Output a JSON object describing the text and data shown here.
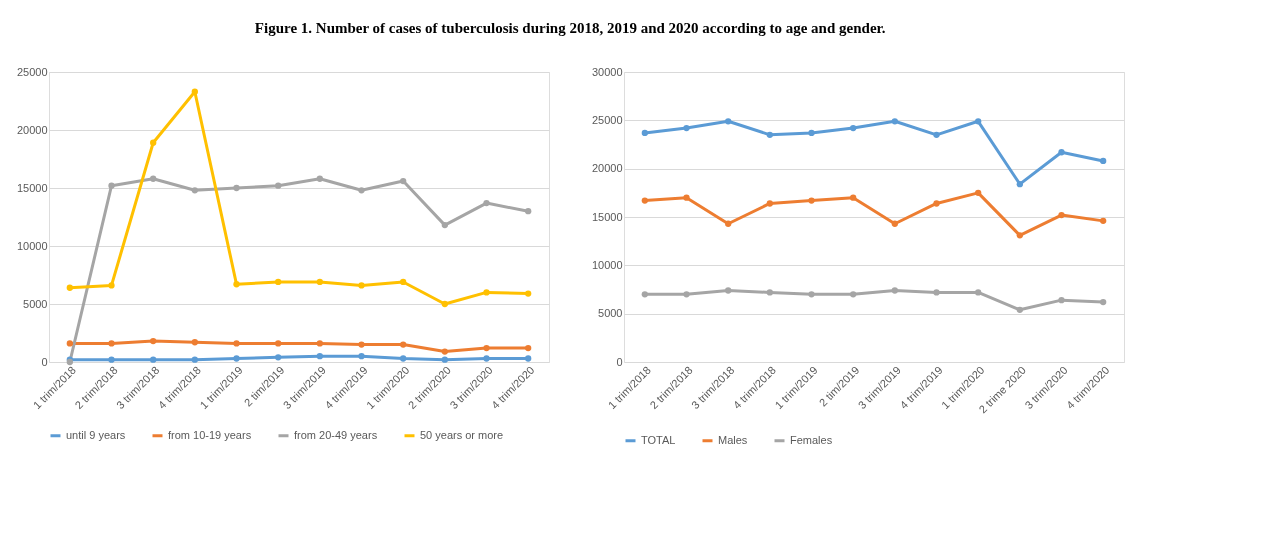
{
  "chart_data": [
    {
      "type": "line",
      "title": "Figure 1. Number of cases of tuberculosis during 2018, 2019 and 2020 according to age and gender.",
      "categories": [
        "1 trim/2018",
        "2 trim/2018",
        "3 trim/2018",
        "4 trim/2018",
        "1 trim/2019",
        "2 tim/2019",
        "3 trim/2019",
        "4 trim/2019",
        "1 trim/2020",
        "2 trim/2020",
        "3 trim/2020",
        "4 trim/2020"
      ],
      "series": [
        {
          "name": "until 9 years",
          "color": "#5b9bd5",
          "values": [
            200,
            200,
            200,
            200,
            300,
            400,
            500,
            500,
            300,
            200,
            300,
            300
          ]
        },
        {
          "name": "from 10-19 years",
          "color": "#ed7d31",
          "values": [
            1600,
            1600,
            1800,
            1700,
            1600,
            1600,
            1600,
            1500,
            1500,
            900,
            1200,
            1200
          ]
        },
        {
          "name": "from 20-49 years",
          "color": "#a5a5a5",
          "values": [
            0,
            15200,
            15800,
            14800,
            15000,
            15200,
            15800,
            14800,
            15600,
            11800,
            13700,
            13000
          ]
        },
        {
          "name": "50 years or more",
          "color": "#ffc000",
          "values": [
            6400,
            6600,
            18900,
            23300,
            6700,
            6900,
            6900,
            6600,
            6900,
            5000,
            6000,
            5900
          ]
        }
      ],
      "ylim": [
        0,
        25000
      ],
      "yticks": [
        0,
        5000,
        10000,
        15000,
        20000,
        25000
      ],
      "grid": "y",
      "legend": "bottom",
      "marker": "circle",
      "line_style": "solid"
    },
    {
      "type": "line",
      "categories": [
        "1 trim/2018",
        "2 trim/2018",
        "3 trim/2018",
        "4 trim/2018",
        "1 trim/2019",
        "2 tim/2019",
        "3 trim/2019",
        "4 trim/2019",
        "1 trim/2020",
        "2 trime 2020",
        "3 trim/2020",
        "4 trim/2020"
      ],
      "series": [
        {
          "name": "TOTAL",
          "color": "#5b9bd5",
          "values": [
            23700,
            24200,
            24900,
            23500,
            23700,
            24200,
            24900,
            23500,
            24900,
            18400,
            21700,
            20800
          ]
        },
        {
          "name": "Males",
          "color": "#ed7d31",
          "values": [
            16700,
            17000,
            14300,
            16400,
            16700,
            17000,
            14300,
            16400,
            17500,
            13100,
            15200,
            14600
          ]
        },
        {
          "name": "Females",
          "color": "#a5a5a5",
          "values": [
            7000,
            7000,
            7400,
            7200,
            7000,
            7000,
            7400,
            7200,
            7200,
            5400,
            6400,
            6200
          ]
        }
      ],
      "ylim": [
        0,
        30000
      ],
      "yticks": [
        0,
        5000,
        10000,
        15000,
        20000,
        25000,
        30000
      ],
      "grid": "y",
      "legend": "bottom",
      "marker": "circle",
      "line_style": "solid"
    }
  ]
}
